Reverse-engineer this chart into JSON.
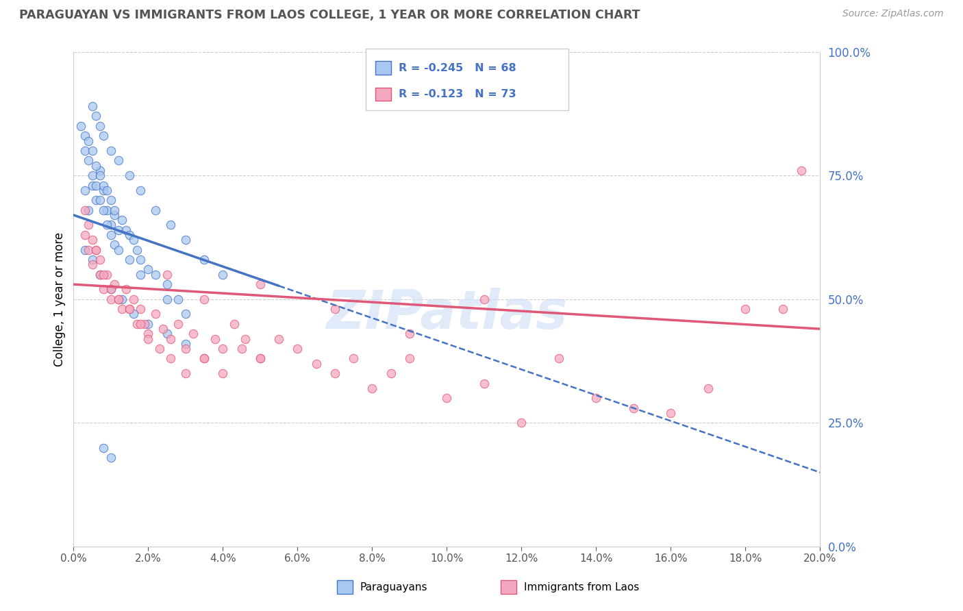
{
  "title": "PARAGUAYAN VS IMMIGRANTS FROM LAOS COLLEGE, 1 YEAR OR MORE CORRELATION CHART",
  "source": "Source: ZipAtlas.com",
  "xmin": 0.0,
  "xmax": 20.0,
  "ymin": 0.0,
  "ymax": 100.0,
  "legend_blue_r": "R = -0.245",
  "legend_blue_n": "N = 68",
  "legend_pink_r": "R = -0.123",
  "legend_pink_n": "N = 73",
  "legend_label_blue": "Paraguayans",
  "legend_label_pink": "Immigrants from Laos",
  "watermark": "ZIPatlas",
  "blue_color": "#a8c8f0",
  "pink_color": "#f4a8c0",
  "trend_blue": "#4472c4",
  "trend_pink": "#e05878",
  "blue_scatter_x": [
    0.3,
    0.4,
    0.5,
    0.6,
    0.7,
    0.8,
    0.9,
    1.0,
    1.1,
    1.2,
    0.3,
    0.4,
    0.5,
    0.6,
    0.7,
    0.8,
    0.9,
    1.0,
    1.1,
    1.2,
    0.2,
    0.3,
    0.4,
    0.5,
    0.6,
    0.7,
    0.8,
    0.9,
    1.0,
    1.1,
    1.3,
    1.4,
    1.5,
    1.6,
    1.7,
    1.8,
    2.0,
    2.2,
    2.5,
    2.8,
    0.5,
    0.6,
    0.7,
    0.8,
    1.0,
    1.2,
    1.5,
    1.8,
    2.2,
    2.6,
    3.0,
    3.5,
    4.0,
    0.3,
    0.5,
    0.7,
    1.0,
    1.3,
    1.6,
    2.0,
    2.5,
    3.0,
    1.5,
    1.8,
    2.5,
    3.0,
    0.8,
    1.0
  ],
  "blue_scatter_y": [
    72,
    68,
    73,
    70,
    76,
    72,
    68,
    65,
    67,
    64,
    80,
    78,
    75,
    73,
    70,
    68,
    65,
    63,
    61,
    60,
    85,
    83,
    82,
    80,
    77,
    75,
    73,
    72,
    70,
    68,
    66,
    64,
    63,
    62,
    60,
    58,
    56,
    55,
    53,
    50,
    89,
    87,
    85,
    83,
    80,
    78,
    75,
    72,
    68,
    65,
    62,
    58,
    55,
    60,
    58,
    55,
    52,
    50,
    47,
    45,
    43,
    41,
    58,
    55,
    50,
    47,
    20,
    18
  ],
  "pink_scatter_x": [
    0.3,
    0.4,
    0.5,
    0.6,
    0.7,
    0.8,
    0.9,
    1.0,
    1.1,
    1.2,
    1.3,
    1.4,
    1.5,
    1.6,
    1.7,
    1.8,
    1.9,
    2.0,
    2.2,
    2.4,
    2.6,
    2.8,
    3.0,
    3.2,
    3.5,
    3.8,
    4.0,
    4.3,
    4.6,
    5.0,
    0.3,
    0.4,
    0.5,
    0.6,
    0.7,
    0.8,
    1.0,
    1.2,
    1.5,
    1.8,
    2.0,
    2.3,
    2.6,
    3.0,
    3.5,
    4.0,
    4.5,
    5.0,
    5.5,
    6.0,
    6.5,
    7.0,
    7.5,
    8.0,
    8.5,
    9.0,
    10.0,
    11.0,
    12.0,
    13.0,
    14.0,
    15.0,
    16.0,
    17.0,
    18.0,
    19.0,
    2.5,
    3.5,
    5.0,
    7.0,
    9.0,
    11.0,
    19.5
  ],
  "pink_scatter_y": [
    63,
    60,
    57,
    60,
    55,
    52,
    55,
    50,
    53,
    50,
    48,
    52,
    48,
    50,
    45,
    48,
    45,
    43,
    47,
    44,
    42,
    45,
    40,
    43,
    38,
    42,
    40,
    45,
    42,
    38,
    68,
    65,
    62,
    60,
    58,
    55,
    52,
    50,
    48,
    45,
    42,
    40,
    38,
    35,
    38,
    35,
    40,
    38,
    42,
    40,
    37,
    35,
    38,
    32,
    35,
    38,
    30,
    33,
    25,
    38,
    30,
    28,
    27,
    32,
    48,
    48,
    55,
    50,
    53,
    48,
    43,
    50,
    76
  ],
  "blue_trend_x0": 0.0,
  "blue_trend_y0": 67.0,
  "blue_trend_x1": 20.0,
  "blue_trend_y1": 15.0,
  "blue_solid_end": 5.5,
  "pink_trend_x0": 0.0,
  "pink_trend_y0": 53.0,
  "pink_trend_x1": 20.0,
  "pink_trend_y1": 44.0
}
